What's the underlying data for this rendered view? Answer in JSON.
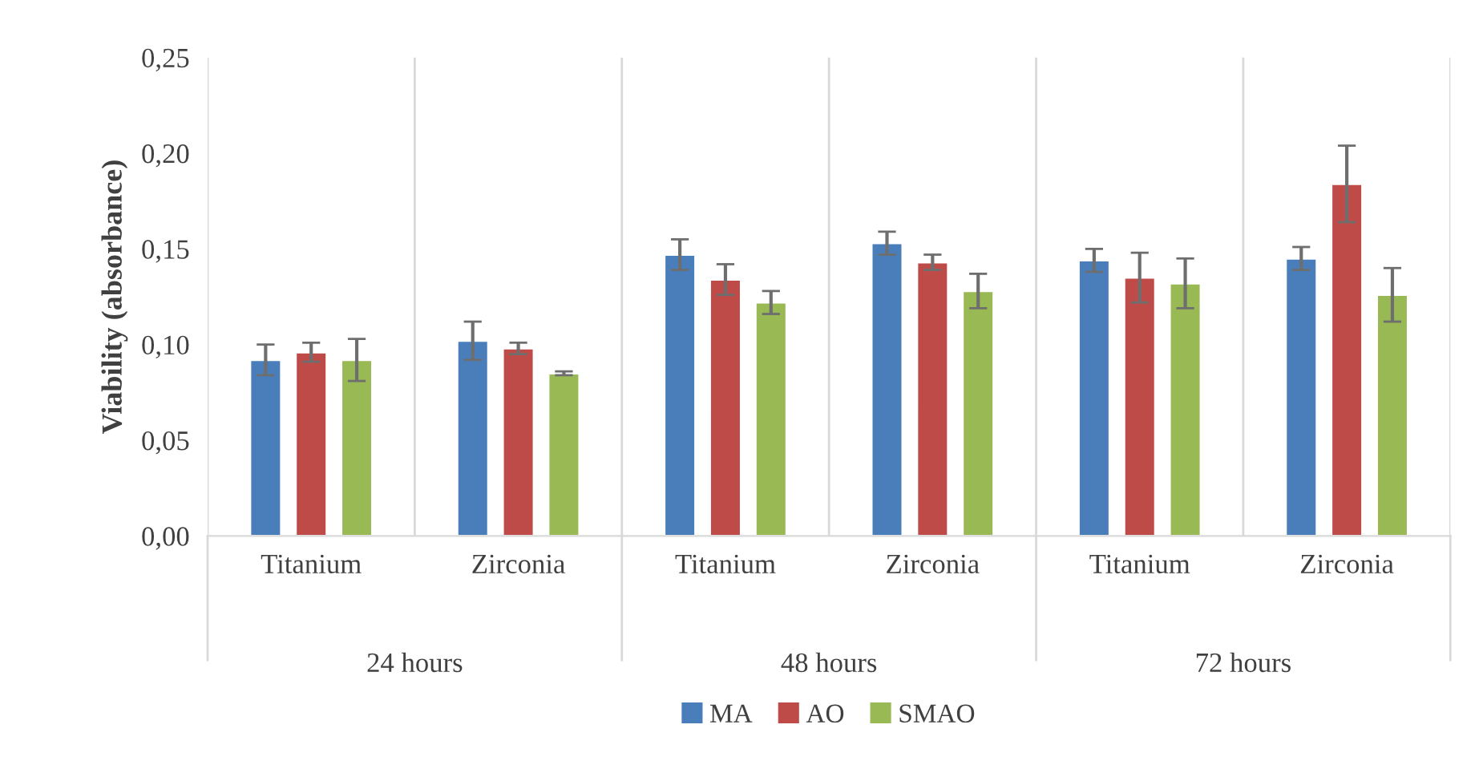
{
  "chart_data": {
    "type": "bar",
    "ylabel": "Viability (absorbance)",
    "categories": [
      "Titanium",
      "Zirconia",
      "Titanium",
      "Zirconia",
      "Titanium",
      "Zirconia"
    ],
    "annotations": [
      "24 hours",
      "48 hours",
      "72 hours"
    ],
    "series": [
      {
        "name": "MA",
        "color": "#4a7ebb",
        "values": [
          0.092,
          0.102,
          0.147,
          0.153,
          0.144,
          0.145
        ],
        "errors": [
          0.008,
          0.01,
          0.008,
          0.006,
          0.006,
          0.006
        ]
      },
      {
        "name": "AO",
        "color": "#be4b48",
        "values": [
          0.096,
          0.098,
          0.134,
          0.143,
          0.135,
          0.184
        ],
        "errors": [
          0.005,
          0.003,
          0.008,
          0.004,
          0.013,
          0.02
        ]
      },
      {
        "name": "SMAO",
        "color": "#98b954",
        "values": [
          0.092,
          0.085,
          0.122,
          0.128,
          0.132,
          0.126
        ],
        "errors": [
          0.011,
          0.001,
          0.006,
          0.009,
          0.013,
          0.014
        ]
      }
    ],
    "ylim": [
      0,
      0.25
    ],
    "yticks": [
      {
        "value": 0,
        "label": "0,00"
      },
      {
        "value": 0.05,
        "label": "0,05"
      },
      {
        "value": 0.1,
        "label": "0,10"
      },
      {
        "value": 0.15,
        "label": "0,15"
      },
      {
        "value": 0.2,
        "label": "0,20"
      },
      {
        "value": 0.25,
        "label": "0,25"
      }
    ],
    "grid": "x",
    "legend": "bottom"
  }
}
